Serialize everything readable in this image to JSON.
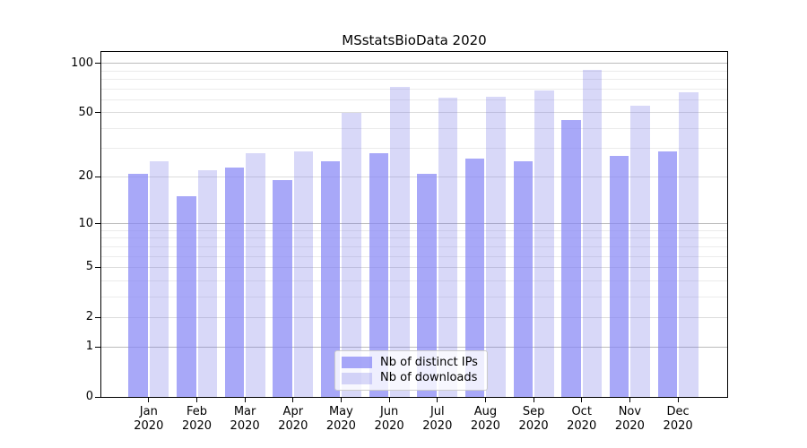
{
  "title": "MSstatsBioData 2020",
  "chart_data": {
    "type": "bar",
    "title": "MSstatsBioData 2020",
    "categories": [
      "Jan",
      "Feb",
      "Mar",
      "Apr",
      "May",
      "Jun",
      "Jul",
      "Aug",
      "Sep",
      "Oct",
      "Nov",
      "Dec"
    ],
    "year_label": "2020",
    "series": [
      {
        "name": "Nb of distinct IPs",
        "color": "rgba(134,134,245,0.72)",
        "values": [
          21,
          15,
          23,
          19,
          25,
          28,
          21,
          26,
          25,
          45,
          27,
          29
        ]
      },
      {
        "name": "Nb of downloads",
        "color": "rgba(116,116,230,0.28)",
        "values": [
          25,
          22,
          28,
          29,
          50,
          72,
          62,
          63,
          68,
          91,
          55,
          67
        ]
      }
    ],
    "yscale": "log1p",
    "y_axis_ticks": [
      0,
      1,
      2,
      5,
      10,
      20,
      50,
      100
    ],
    "y_decade_lines": [
      1,
      10,
      100
    ],
    "y_minor_gridlines": [
      3,
      4,
      6,
      7,
      8,
      9,
      30,
      40,
      60,
      70,
      80,
      90
    ],
    "ylim": [
      0,
      117
    ],
    "grid": true,
    "legend_position": "lower center"
  },
  "colors": {
    "bar_dark": "rgba(134,134,245,0.72)",
    "bar_light": "rgba(116,116,230,0.28)",
    "grid_decade": "#bcbcbc",
    "grid_major": "#dcdcdc",
    "grid_minor": "#ebebeb",
    "axis": "#000000"
  },
  "legend": {
    "items": [
      {
        "label": "Nb of distinct IPs"
      },
      {
        "label": "Nb of downloads"
      }
    ]
  }
}
